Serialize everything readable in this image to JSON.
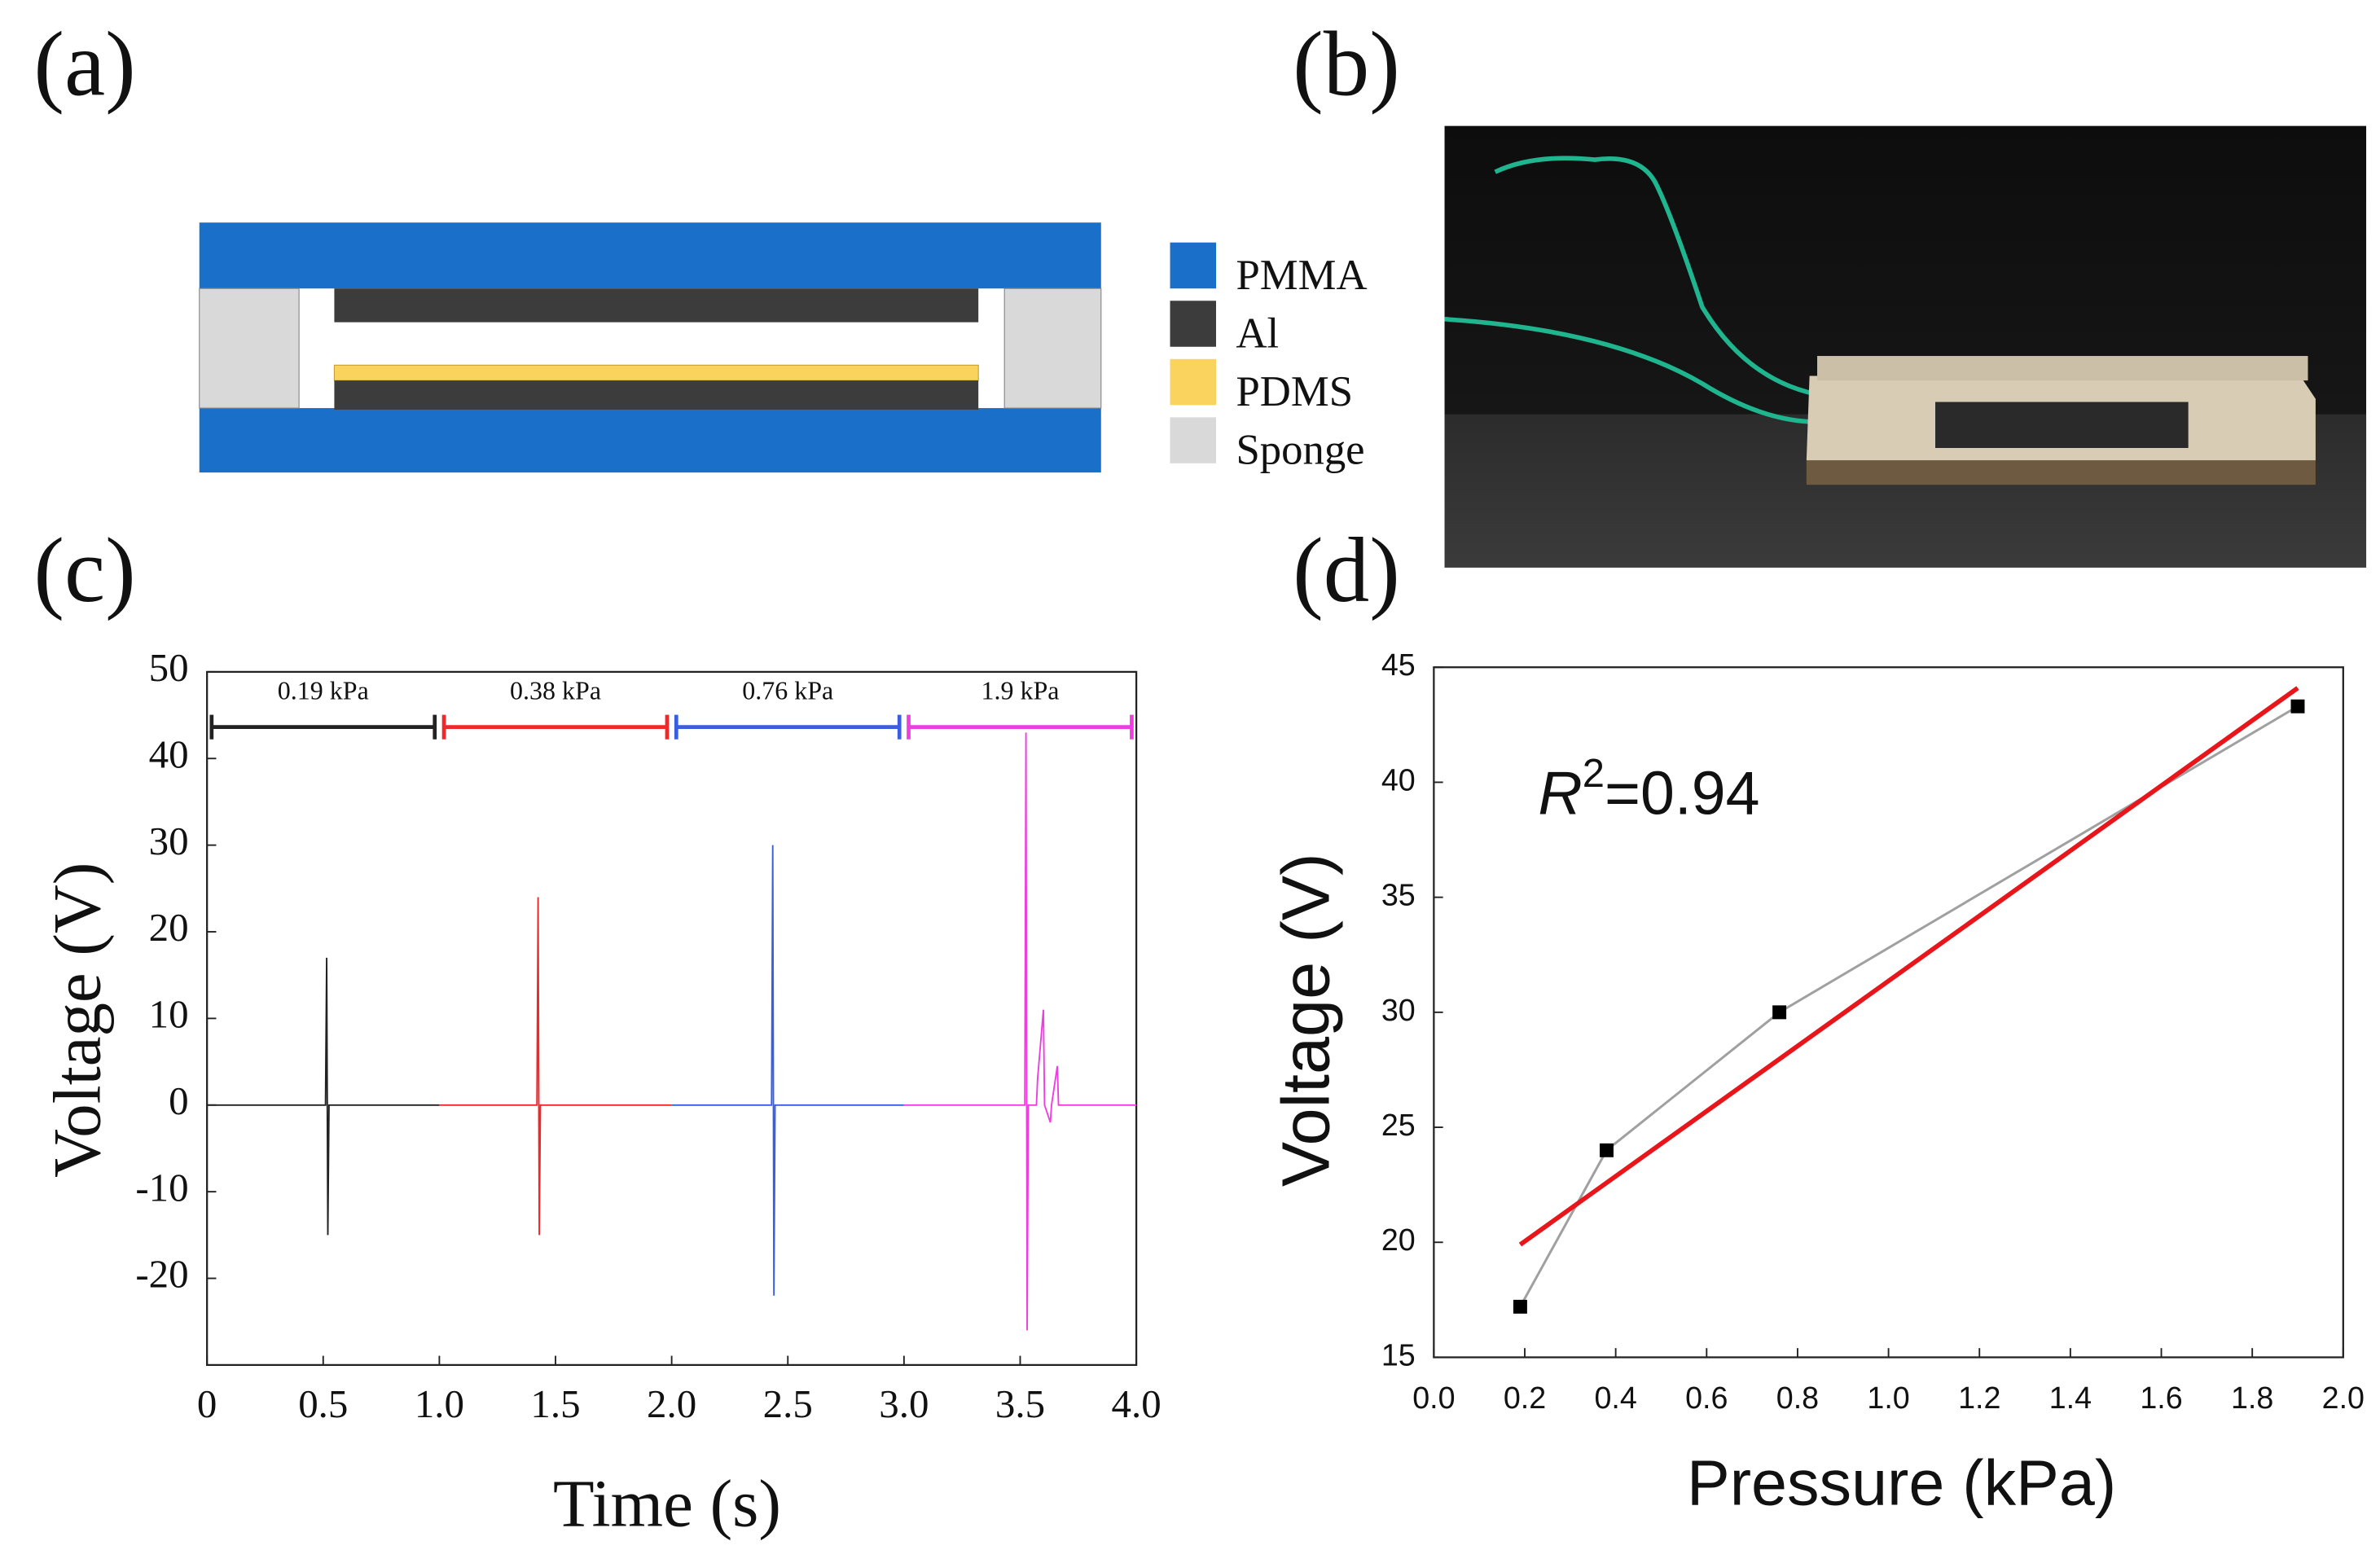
{
  "panel_labels": [
    "(a)",
    "(b)",
    "(c)",
    "(d)"
  ],
  "schematic": {
    "legend": [
      {
        "name": "PMMA",
        "color": "#1a6fc9"
      },
      {
        "name": "Al",
        "color": "#3c3c3c"
      },
      {
        "name": "PDMS",
        "color": "#f9d35e"
      },
      {
        "name": "Sponge",
        "color": "#d9d9d9"
      }
    ]
  },
  "chart_data": [
    {
      "type": "line",
      "xlabel": "Time (s)",
      "ylabel": "Voltage (V)",
      "xlim": [
        0,
        4.0
      ],
      "xticks": [
        0,
        {
          "value": 0.5,
          "label": "0.5"
        },
        {
          "value": 1.0,
          "label": "1.0"
        },
        {
          "value": 1.5,
          "label": "1.5"
        },
        {
          "value": 2.0,
          "label": "2.0"
        },
        {
          "value": 2.5,
          "label": "2.5"
        },
        {
          "value": 3.0,
          "label": "3.0"
        },
        {
          "value": 3.5,
          "label": "3.5"
        },
        {
          "value": 4.0,
          "label": "4.0"
        }
      ],
      "ylim": [
        -30,
        50
      ],
      "yticks": [
        -20,
        -10,
        0,
        10,
        20,
        30,
        40,
        50
      ],
      "series": [
        {
          "name": "0.19 kPa",
          "color": "#222222",
          "x": [
            0,
            0.51,
            0.515,
            0.52,
            0.525,
            0.6,
            1.0
          ],
          "values": [
            0,
            0,
            17,
            -15,
            0,
            0,
            0
          ]
        },
        {
          "name": "0.38 kPa",
          "color": "#f0282a",
          "x": [
            1.0,
            1.42,
            1.425,
            1.43,
            1.435,
            2.0
          ],
          "values": [
            0,
            0,
            24,
            -15,
            0,
            0
          ]
        },
        {
          "name": "0.76 kPa",
          "color": "#3a5ee0",
          "x": [
            2.0,
            2.43,
            2.435,
            2.44,
            2.445,
            3.0
          ],
          "values": [
            0,
            0,
            30,
            -22,
            0,
            0
          ]
        },
        {
          "name": "1.9 kPa",
          "color": "#ee3ee0",
          "x": [
            3.0,
            3.52,
            3.525,
            3.53,
            3.535,
            3.57,
            3.575,
            3.6,
            3.605,
            3.63,
            3.635,
            3.66,
            3.665,
            4.0
          ],
          "values": [
            0,
            0,
            43,
            -26,
            0,
            0,
            3,
            11,
            0,
            -2,
            0,
            4.5,
            0,
            0
          ]
        }
      ]
    },
    {
      "type": "line",
      "xlabel": "Pressure (kPa)",
      "ylabel": "Voltage (V)",
      "xlim": [
        0.0,
        2.0
      ],
      "xticks": [
        {
          "value": 0,
          "label": "0.0"
        },
        {
          "value": 0.2,
          "label": "0.2"
        },
        {
          "value": 0.4,
          "label": "0.4"
        },
        {
          "value": 0.6,
          "label": "0.6"
        },
        {
          "value": 0.8,
          "label": "0.8"
        },
        {
          "value": 1.0,
          "label": "1.0"
        },
        {
          "value": 1.2,
          "label": "1.2"
        },
        {
          "value": 1.4,
          "label": "1.4"
        },
        {
          "value": 1.6,
          "label": "1.6"
        },
        {
          "value": 1.8,
          "label": "1.8"
        },
        {
          "value": 2.0,
          "label": "2.0"
        }
      ],
      "ylim": [
        15,
        45
      ],
      "yticks": [
        15,
        20,
        25,
        30,
        35,
        40,
        45
      ],
      "annotation": {
        "symbol": "R",
        "exponent": "2",
        "text": "=0.94"
      },
      "series": [
        {
          "color": "#a0a0a0",
          "marker_color": "#000000",
          "x": [
            0.19,
            0.38,
            0.76,
            1.9
          ],
          "values": [
            17.2,
            24,
            30,
            43.3
          ]
        }
      ],
      "fit": {
        "color": "#e8151b",
        "x": [
          0.19,
          1.9
        ],
        "values": [
          19.9,
          44.1
        ]
      }
    }
  ]
}
